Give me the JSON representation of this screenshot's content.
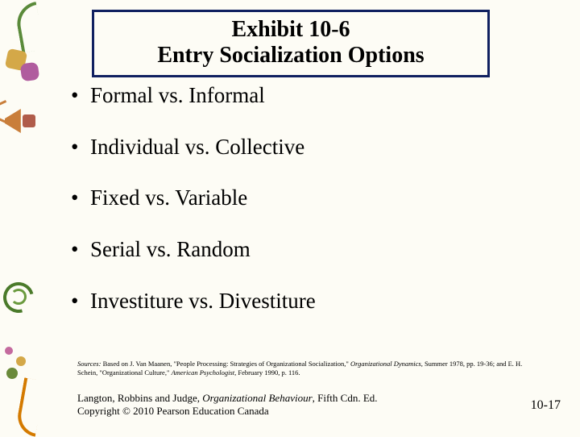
{
  "title": {
    "line1": "Exhibit 10-6",
    "line2": "Entry Socialization Options"
  },
  "bullets": [
    "Formal vs. Informal",
    "Individual vs. Collective",
    "Fixed vs. Variable",
    "Serial vs. Random",
    "Investiture vs. Divestiture"
  ],
  "sources": {
    "prefix": "Sources:",
    "text1": " Based on J. Van Maanen, \"People Processing: Strategies of Organizational Socialization,\" ",
    "ital1": "Organizational Dynamics",
    "text2": ", Summer 1978, pp. 19-36; and E. H. Schein, \"Organizational Culture,\" ",
    "ital2": "American Psychologist",
    "text3": ", February 1990, p. 116."
  },
  "footer": {
    "authors": "Langton, Robbins and Judge, ",
    "book": "Organizational Behaviour",
    "edition": ", Fifth Cdn. Ed.",
    "copyright": "Copyright © 2010 Pearson Education Canada",
    "page": "10-17"
  },
  "colors": {
    "title_border": "#102060",
    "background": "#fdfcf5"
  }
}
